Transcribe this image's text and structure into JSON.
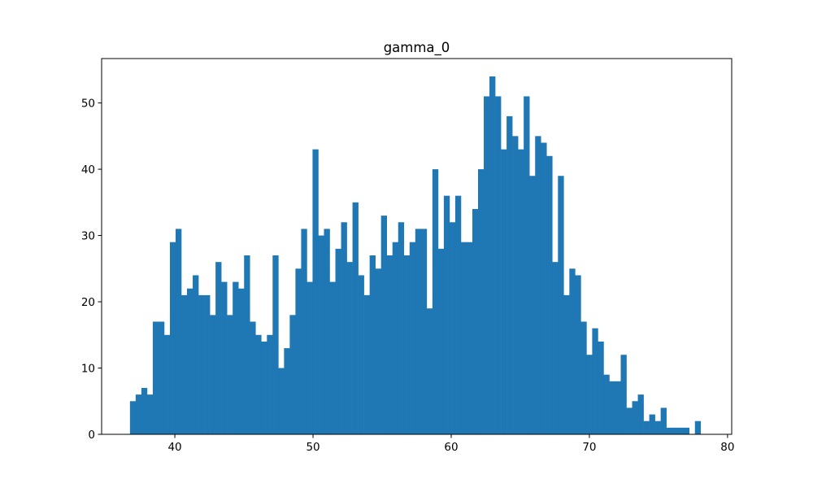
{
  "chart_data": {
    "type": "bar",
    "title": "gamma_0",
    "xlabel": "",
    "ylabel": "",
    "xlim": [
      34.7,
      80.3
    ],
    "ylim": [
      0,
      56.7
    ],
    "xticks": [
      40,
      50,
      60,
      70,
      80
    ],
    "yticks": [
      0,
      10,
      20,
      30,
      40,
      50
    ],
    "grid": false,
    "bar_color": "#1f77b4",
    "bin_start": 36.75,
    "bin_width": 0.413,
    "values": [
      5,
      6,
      7,
      6,
      17,
      17,
      15,
      29,
      31,
      21,
      22,
      24,
      21,
      21,
      18,
      26,
      23,
      18,
      23,
      22,
      27,
      17,
      15,
      14,
      15,
      27,
      10,
      13,
      18,
      25,
      31,
      23,
      43,
      30,
      31,
      23,
      28,
      32,
      26,
      35,
      24,
      21,
      27,
      25,
      33,
      27,
      29,
      32,
      27,
      29,
      31,
      31,
      19,
      40,
      28,
      36,
      32,
      36,
      29,
      29,
      34,
      40,
      51,
      54,
      51,
      43,
      48,
      45,
      43,
      51,
      39,
      45,
      44,
      42,
      26,
      39,
      21,
      25,
      24,
      17,
      12,
      16,
      14,
      9,
      8,
      8,
      12,
      4,
      5,
      6,
      2,
      3,
      2,
      4,
      1,
      1,
      1,
      1,
      0,
      2
    ]
  }
}
